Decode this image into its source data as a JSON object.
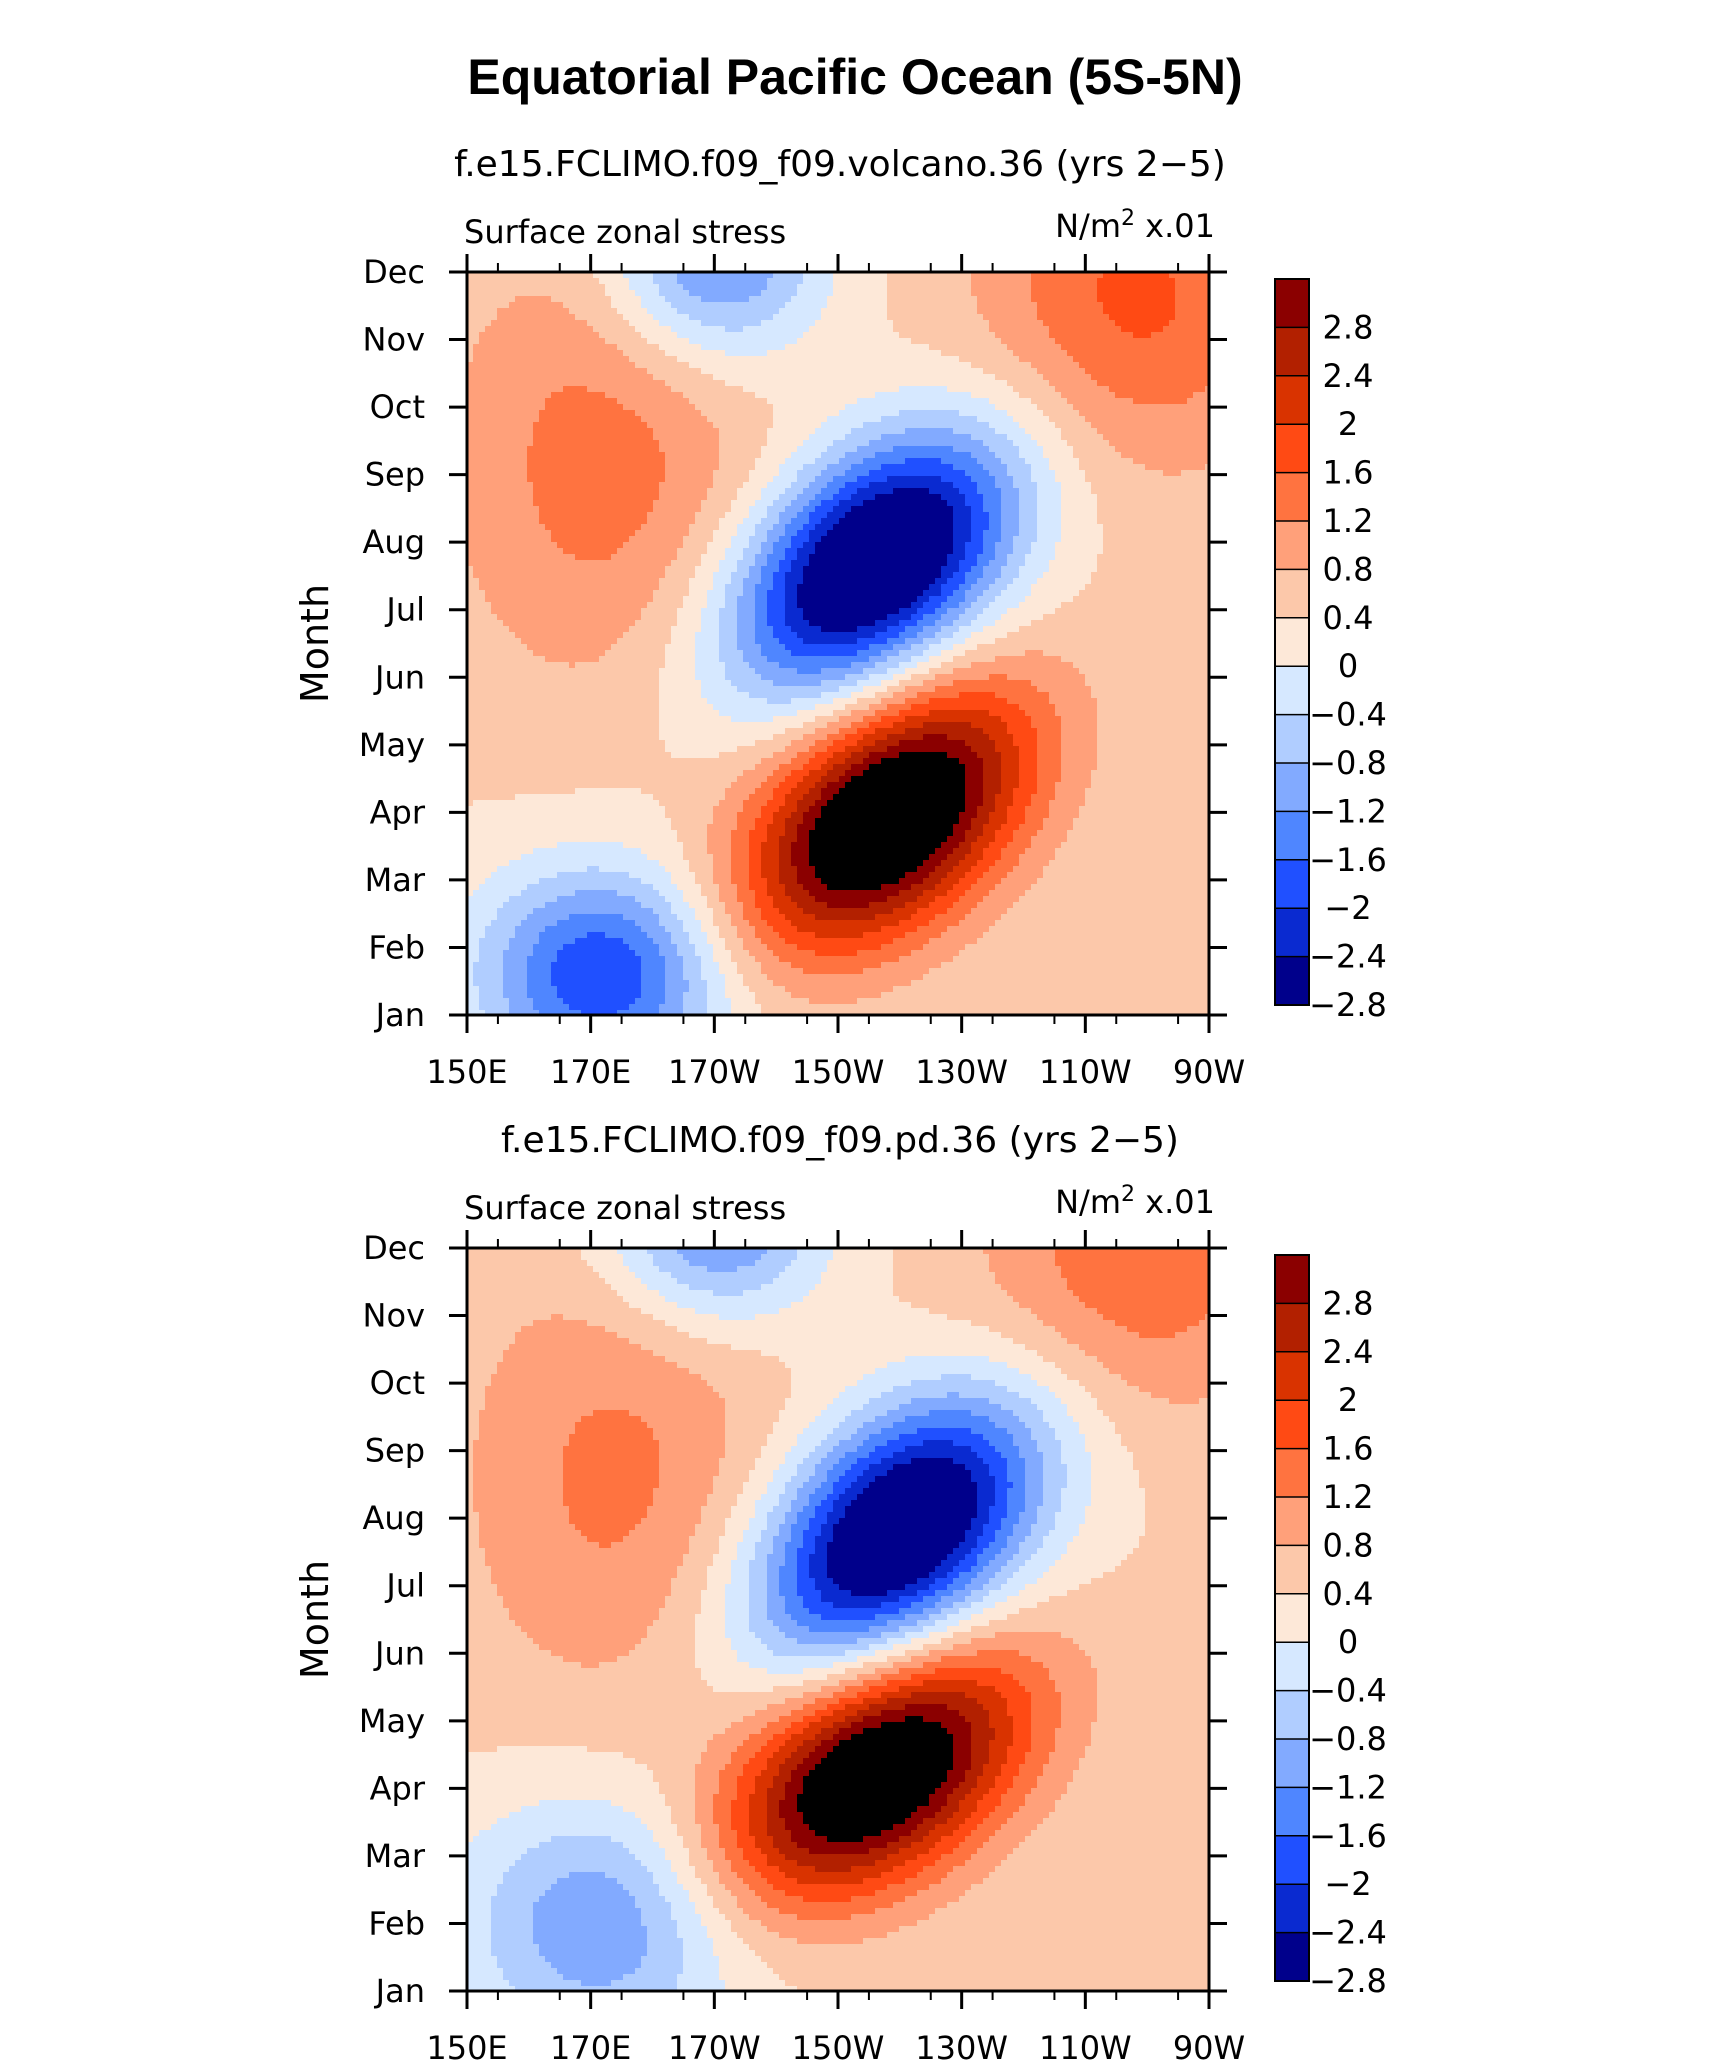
{
  "figure": {
    "title": "Equatorial Pacific Ocean (5S-5N)"
  },
  "chart_data": [
    {
      "type": "heatmap",
      "title": "f.e15.FCLIMO.f09_f09.volcano.36 (yrs 2−5)",
      "left_label": "Surface zonal stress",
      "units_base": "N/m",
      "units_exp": "2",
      "units_scale": " x.01",
      "xlabel": "",
      "ylabel": "Month",
      "x_ticks": [
        "150E",
        "170E",
        "170W",
        "150W",
        "130W",
        "110W",
        "90W"
      ],
      "x_range_lon": [
        150,
        270
      ],
      "y_ticks": [
        "Jan",
        "Feb",
        "Mar",
        "Apr",
        "May",
        "Jun",
        "Jul",
        "Aug",
        "Sep",
        "Oct",
        "Nov",
        "Dec"
      ],
      "levels": [
        -2.8,
        -2.4,
        -2,
        -1.6,
        -1.2,
        -0.8,
        -0.4,
        0,
        0.4,
        0.8,
        1.2,
        1.6,
        2,
        2.4,
        2.8
      ],
      "level_labels": [
        "2.8",
        "2.4",
        "2",
        "1.6",
        "1.2",
        "0.8",
        "0.4",
        "0",
        "−0.4",
        "−0.8",
        "−1.2",
        "−1.6",
        "−2",
        "−2.4",
        "−2.8"
      ],
      "colors": [
        "#8b0000",
        "#b22000",
        "#d93300",
        "#ff4a14",
        "#ff7340",
        "#ffa07a",
        "#fcc8aa",
        "#fde8d8",
        "#d6e8ff",
        "#b0cdff",
        "#82aaff",
        "#4f86ff",
        "#2050ff",
        "#0a2ad0",
        "#00008b"
      ],
      "features": [
        {
          "lon": 218,
          "month": 2.9,
          "amp": 3.9,
          "slon": 16,
          "smon": 1.35,
          "corr": -0.45
        },
        {
          "lon": 216,
          "month": 6.7,
          "amp": -4.0,
          "slon": 16,
          "smon": 1.35,
          "corr": -0.45
        },
        {
          "lon": 172,
          "month": 8.2,
          "amp": 1.0,
          "slon": 18,
          "smon": 2.4,
          "corr": 0
        },
        {
          "lon": 172,
          "month": 0.6,
          "amp": -2.4,
          "slon": 14,
          "smon": 1.1,
          "corr": 0
        },
        {
          "lon": 190,
          "month": 11.2,
          "amp": -1.9,
          "slon": 12,
          "smon": 1.1,
          "corr": 0
        },
        {
          "lon": 258,
          "month": 10.6,
          "amp": 1.3,
          "slon": 18,
          "smon": 1.8,
          "corr": 0
        }
      ]
    },
    {
      "type": "heatmap",
      "title": "f.e15.FCLIMO.f09_f09.pd.36 (yrs 2−5)",
      "left_label": "Surface zonal stress",
      "units_base": "N/m",
      "units_exp": "2",
      "units_scale": " x.01",
      "xlabel": "",
      "ylabel": "Month",
      "x_ticks": [
        "150E",
        "170E",
        "170W",
        "150W",
        "130W",
        "110W",
        "90W"
      ],
      "x_range_lon": [
        150,
        270
      ],
      "y_ticks": [
        "Jan",
        "Feb",
        "Mar",
        "Apr",
        "May",
        "Jun",
        "Jul",
        "Aug",
        "Sep",
        "Oct",
        "Nov",
        "Dec"
      ],
      "levels": [
        -2.8,
        -2.4,
        -2,
        -1.6,
        -1.2,
        -0.8,
        -0.4,
        0,
        0.4,
        0.8,
        1.2,
        1.6,
        2,
        2.4,
        2.8
      ],
      "level_labels": [
        "2.8",
        "2.4",
        "2",
        "1.6",
        "1.2",
        "0.8",
        "0.4",
        "0",
        "−0.4",
        "−0.8",
        "−1.2",
        "−1.6",
        "−2",
        "−2.4",
        "−2.8"
      ],
      "colors": [
        "#8b0000",
        "#b22000",
        "#d93300",
        "#ff4a14",
        "#ff7340",
        "#ffa07a",
        "#fcc8aa",
        "#fde8d8",
        "#d6e8ff",
        "#b0cdff",
        "#82aaff",
        "#4f86ff",
        "#2050ff",
        "#0a2ad0",
        "#00008b"
      ],
      "features": [
        {
          "lon": 216,
          "month": 3.2,
          "amp": 3.8,
          "slon": 17,
          "smon": 1.3,
          "corr": -0.45
        },
        {
          "lon": 220,
          "month": 6.8,
          "amp": -3.9,
          "slon": 16,
          "smon": 1.4,
          "corr": -0.45
        },
        {
          "lon": 174,
          "month": 7.6,
          "amp": 0.9,
          "slon": 18,
          "smon": 2.4,
          "corr": 0
        },
        {
          "lon": 172,
          "month": 1.0,
          "amp": -1.6,
          "slon": 16,
          "smon": 1.3,
          "corr": 0
        },
        {
          "lon": 190,
          "month": 11.3,
          "amp": -1.8,
          "slon": 12,
          "smon": 1.0,
          "corr": 0
        },
        {
          "lon": 258,
          "month": 10.7,
          "amp": 1.1,
          "slon": 18,
          "smon": 1.6,
          "corr": 0
        }
      ]
    }
  ]
}
